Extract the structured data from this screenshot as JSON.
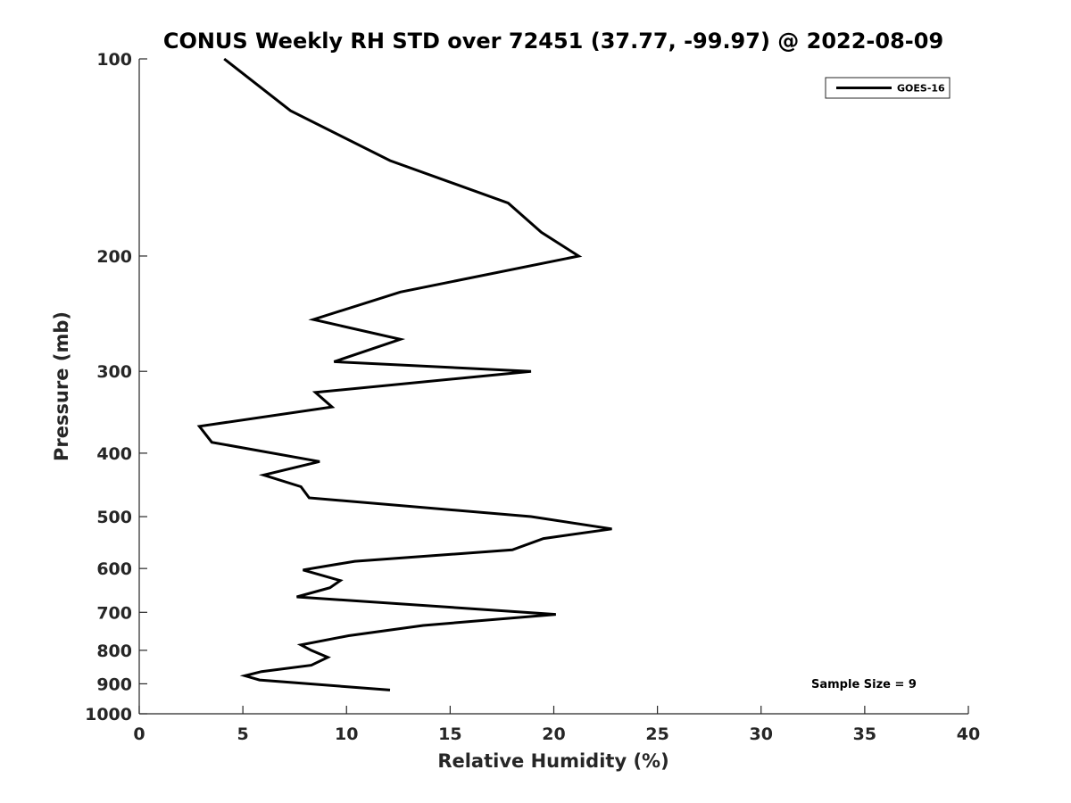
{
  "chart_data": {
    "type": "line",
    "title": "CONUS Weekly RH STD over 72451 (37.77, -99.97) @ 2022-08-09",
    "xlabel": "Relative Humidity (%)",
    "ylabel": "Pressure (mb)",
    "xlim": [
      0,
      40
    ],
    "ylim": [
      100,
      1000
    ],
    "yscale": "log",
    "y_reversed": true,
    "grid": false,
    "legend_position": "top-right",
    "xticks": [
      0,
      5,
      10,
      15,
      20,
      25,
      30,
      35,
      40
    ],
    "xtick_labels": [
      "0",
      "5",
      "10",
      "15",
      "20",
      "25",
      "30",
      "35",
      "40"
    ],
    "yticks": [
      100,
      200,
      300,
      400,
      500,
      600,
      700,
      800,
      900,
      1000
    ],
    "ytick_labels": [
      "100",
      "200",
      "300",
      "400",
      "500",
      "600",
      "700",
      "800",
      "900",
      "1000"
    ],
    "annotation": "Sample Size = 9",
    "series": [
      {
        "name": "GOES-16",
        "color": "#000000",
        "x": [
          4.1,
          7.3,
          12.1,
          17.8,
          19.4,
          21.2,
          12.6,
          8.4,
          12.6,
          9.4,
          18.9,
          8.5,
          9.3,
          2.9,
          3.5,
          8.7,
          6.0,
          7.8,
          8.2,
          18.9,
          22.8,
          19.5,
          18.0,
          10.4,
          7.9,
          9.7,
          9.2,
          7.6,
          20.1,
          13.7,
          10.1,
          7.8,
          8.3,
          9.1,
          8.3,
          5.9,
          5.1,
          5.8,
          12.1
        ],
        "y": [
          100,
          120,
          143,
          166,
          184,
          200,
          227,
          250,
          268,
          290,
          300,
          323,
          340,
          364,
          385,
          412,
          432,
          450,
          468,
          500,
          522,
          540,
          562,
          585,
          603,
          626,
          642,
          663,
          705,
          733,
          760,
          785,
          800,
          820,
          843,
          862,
          875,
          888,
          920
        ]
      }
    ]
  }
}
